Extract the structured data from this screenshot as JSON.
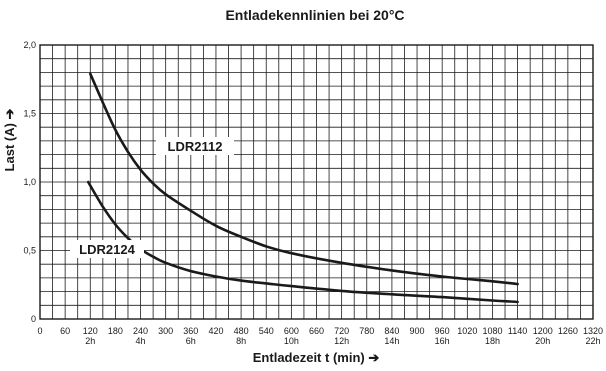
{
  "chart_data": {
    "type": "line",
    "title": "Entladekennlinien bei 20°C",
    "xlabel": "Entladezeit  t (min) ➔",
    "ylabel": "Last  (A) ➔",
    "xlim": [
      0,
      1320
    ],
    "ylim": [
      0,
      2.0
    ],
    "grid": true,
    "x_ticks": [
      {
        "value": 0,
        "label": "0",
        "sub": ""
      },
      {
        "value": 60,
        "label": "60",
        "sub": ""
      },
      {
        "value": 120,
        "label": "120",
        "sub": "2h"
      },
      {
        "value": 180,
        "label": "180",
        "sub": ""
      },
      {
        "value": 240,
        "label": "240",
        "sub": "4h"
      },
      {
        "value": 300,
        "label": "300",
        "sub": ""
      },
      {
        "value": 360,
        "label": "360",
        "sub": "6h"
      },
      {
        "value": 420,
        "label": "420",
        "sub": ""
      },
      {
        "value": 480,
        "label": "480",
        "sub": "8h"
      },
      {
        "value": 540,
        "label": "540",
        "sub": ""
      },
      {
        "value": 600,
        "label": "600",
        "sub": "10h"
      },
      {
        "value": 660,
        "label": "660",
        "sub": ""
      },
      {
        "value": 720,
        "label": "720",
        "sub": "12h"
      },
      {
        "value": 780,
        "label": "780",
        "sub": ""
      },
      {
        "value": 840,
        "label": "840",
        "sub": "14h"
      },
      {
        "value": 900,
        "label": "900",
        "sub": ""
      },
      {
        "value": 960,
        "label": "960",
        "sub": "16h"
      },
      {
        "value": 1020,
        "label": "1020",
        "sub": ""
      },
      {
        "value": 1080,
        "label": "1080",
        "sub": "18h"
      },
      {
        "value": 1140,
        "label": "1140",
        "sub": ""
      },
      {
        "value": 1200,
        "label": "1200",
        "sub": "20h"
      },
      {
        "value": 1260,
        "label": "1260",
        "sub": ""
      },
      {
        "value": 1320,
        "label": "1320",
        "sub": "22h"
      }
    ],
    "y_ticks": [
      {
        "value": 0,
        "label": "0"
      },
      {
        "value": 0.5,
        "label": "0,5"
      },
      {
        "value": 1.0,
        "label": "1,0"
      },
      {
        "value": 1.5,
        "label": "1,5"
      },
      {
        "value": 2.0,
        "label": "2,0"
      }
    ],
    "series": [
      {
        "name": "LDR2112",
        "x": [
          120,
          150,
          180,
          210,
          240,
          270,
          300,
          360,
          420,
          480,
          540,
          600,
          720,
          840,
          960,
          1080,
          1140
        ],
        "y": [
          1.79,
          1.58,
          1.38,
          1.22,
          1.09,
          0.99,
          0.91,
          0.79,
          0.68,
          0.6,
          0.53,
          0.48,
          0.41,
          0.355,
          0.31,
          0.275,
          0.255
        ]
      },
      {
        "name": "LDR2124",
        "x": [
          115,
          150,
          180,
          210,
          240,
          270,
          300,
          360,
          420,
          480,
          540,
          600,
          720,
          840,
          960,
          1080,
          1140
        ],
        "y": [
          1.0,
          0.82,
          0.69,
          0.59,
          0.51,
          0.455,
          0.41,
          0.35,
          0.31,
          0.28,
          0.26,
          0.24,
          0.205,
          0.18,
          0.16,
          0.135,
          0.125
        ]
      }
    ]
  }
}
